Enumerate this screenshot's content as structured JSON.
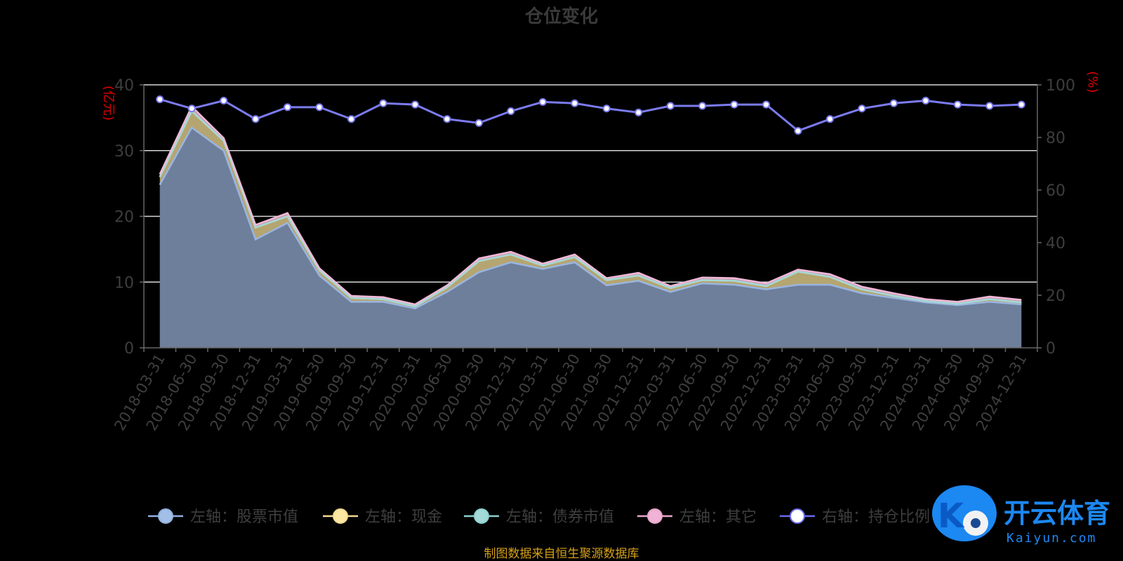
{
  "chart_data": {
    "type": "area",
    "title": "仓位变化",
    "left_unit": "(亿元)",
    "right_unit": "(%)",
    "ylim_left": [
      0,
      40
    ],
    "yticks_left": [
      "0",
      "10",
      "20",
      "30",
      "40"
    ],
    "ylim_right": [
      0,
      100
    ],
    "yticks_right": [
      "0",
      "20",
      "40",
      "60",
      "80",
      "100"
    ],
    "grid": true,
    "legend_position": "bottom",
    "categories": [
      "2018-03-31",
      "2018-06-30",
      "2018-09-30",
      "2018-12-31",
      "2019-03-31",
      "2019-06-30",
      "2019-09-30",
      "2019-12-31",
      "2020-03-31",
      "2020-06-30",
      "2020-09-30",
      "2020-12-31",
      "2021-03-31",
      "2021-06-30",
      "2021-09-30",
      "2021-12-31",
      "2022-03-31",
      "2022-06-30",
      "2022-09-30",
      "2022-12-31",
      "2023-03-31",
      "2023-06-30",
      "2023-09-30",
      "2023-12-31",
      "2024-03-31",
      "2024-06-30",
      "2024-09-30",
      "2024-12-31"
    ],
    "series": [
      {
        "name": "左轴：股票市值",
        "axis": "left",
        "color": "#9ab5e0",
        "values": [
          24.8,
          33.5,
          30.0,
          16.5,
          19.0,
          11.0,
          7.0,
          7.0,
          6.0,
          8.5,
          11.5,
          13.0,
          12.0,
          13.0,
          9.5,
          10.2,
          8.5,
          9.8,
          9.6,
          8.9,
          9.6,
          9.6,
          8.3,
          7.6,
          6.9,
          6.5,
          7.0,
          6.6
        ]
      },
      {
        "name": "左轴：现金",
        "axis": "left",
        "color": "#f6e2a0",
        "values": [
          1.2,
          2.5,
          1.5,
          1.8,
          1.0,
          0.8,
          0.6,
          0.4,
          0.3,
          0.7,
          1.7,
          1.2,
          0.5,
          0.8,
          0.8,
          0.8,
          0.6,
          0.5,
          0.6,
          0.5,
          2.0,
          1.2,
          0.6,
          0.3,
          0.2,
          0.2,
          0.4,
          0.3
        ]
      },
      {
        "name": "左轴：债券市值",
        "axis": "left",
        "color": "#a3d9d9",
        "values": [
          0,
          0,
          0,
          0,
          0,
          0,
          0,
          0,
          0,
          0,
          0,
          0,
          0,
          0,
          0,
          0,
          0,
          0,
          0,
          0,
          0,
          0,
          0,
          0,
          0,
          0,
          0,
          0
        ]
      },
      {
        "name": "左轴：其它",
        "axis": "left",
        "color": "#f2b8d8",
        "values": [
          0.4,
          0.7,
          0.4,
          0.4,
          0.5,
          0.3,
          0.3,
          0.3,
          0.3,
          0.3,
          0.4,
          0.4,
          0.3,
          0.4,
          0.3,
          0.4,
          0.3,
          0.4,
          0.4,
          0.4,
          0.3,
          0.4,
          0.4,
          0.4,
          0.3,
          0.3,
          0.4,
          0.4
        ]
      },
      {
        "name": "右轴：持仓比例",
        "axis": "right",
        "color": "#7b7bf0",
        "values": [
          94.5,
          91.0,
          94.0,
          87.0,
          91.5,
          91.5,
          87.0,
          93.0,
          92.5,
          87.0,
          85.5,
          90.0,
          93.5,
          93.0,
          91.0,
          89.5,
          92.0,
          92.0,
          92.5,
          92.5,
          82.5,
          87.0,
          91.0,
          93.0,
          94.0,
          92.5,
          92.0,
          92.5
        ]
      }
    ]
  },
  "legend": [
    {
      "label": "左轴：股票市值",
      "color": "#a3bfe8"
    },
    {
      "label": "左轴：现金",
      "color": "#fbe7a1"
    },
    {
      "label": "左轴：债券市值",
      "color": "#a3d9d9"
    },
    {
      "label": "左轴：其它",
      "color": "#f0b3d5"
    },
    {
      "label": "右轴：持仓比例",
      "color": "#ffffff"
    }
  ],
  "footer": {
    "source": "制图数据来自恒生聚源数据库"
  },
  "watermark": {
    "brand": "开云体育",
    "domain": "Kaiyun.com",
    "logo_letter": "K"
  }
}
